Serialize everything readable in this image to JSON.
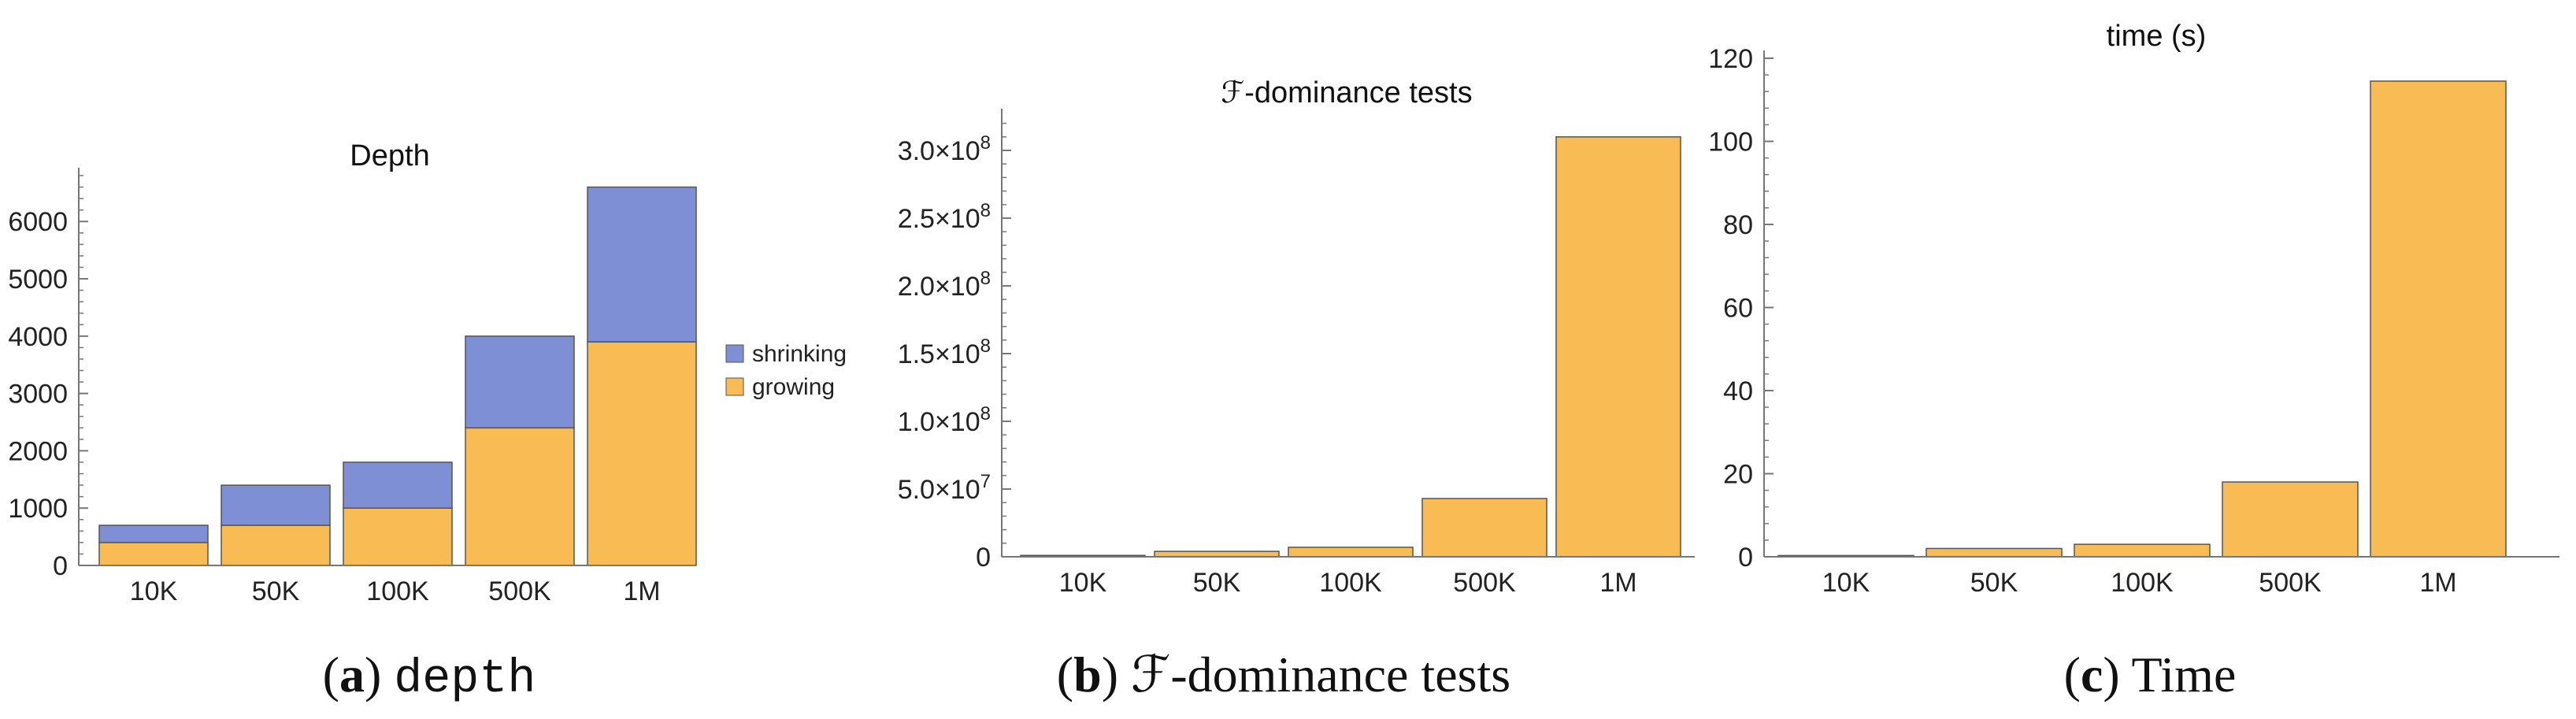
{
  "colors": {
    "growing": "#F9BC54",
    "shrinking": "#7F8FD6",
    "axis": "#777777",
    "bar_edge": "#555555"
  },
  "captions": [
    {
      "tag": "a",
      "text": "depth",
      "style": "code"
    },
    {
      "tag": "b",
      "text": "ℱ-dominance tests",
      "style": "serif"
    },
    {
      "tag": "c",
      "text": "Time",
      "style": "serif"
    }
  ],
  "chart_data": [
    {
      "type": "bar",
      "stacked": true,
      "title": "Depth",
      "categories": [
        "10K",
        "50K",
        "100K",
        "500K",
        "1M"
      ],
      "series": [
        {
          "name": "growing",
          "values": [
            400,
            700,
            1000,
            2400,
            3900
          ]
        },
        {
          "name": "shrinking",
          "values": [
            300,
            700,
            800,
            1600,
            2700
          ]
        }
      ],
      "ylim": [
        0,
        6800
      ],
      "yticks": [
        0,
        1000,
        2000,
        3000,
        4000,
        5000,
        6000
      ],
      "ytick_labels": [
        "0",
        "1000",
        "2000",
        "3000",
        "4000",
        "5000",
        "6000"
      ],
      "legend": {
        "placement": "right",
        "entries": [
          "shrinking",
          "growing"
        ]
      }
    },
    {
      "type": "bar",
      "title": "ℱ-dominance tests",
      "categories": [
        "10K",
        "50K",
        "100K",
        "500K",
        "1M"
      ],
      "values": [
        1000000,
        4000000,
        7000000,
        43000000,
        310000000
      ],
      "ylim": [
        0,
        325000000
      ],
      "yticks": [
        0,
        50000000,
        100000000,
        150000000,
        200000000,
        250000000,
        300000000
      ],
      "ytick_labels": [
        {
          "mantissa": "0",
          "exp": ""
        },
        {
          "mantissa": "5.0×10",
          "exp": "7"
        },
        {
          "mantissa": "1.0×10",
          "exp": "8"
        },
        {
          "mantissa": "1.5×10",
          "exp": "8"
        },
        {
          "mantissa": "2.0×10",
          "exp": "8"
        },
        {
          "mantissa": "2.5×10",
          "exp": "8"
        },
        {
          "mantissa": "3.0×10",
          "exp": "8"
        }
      ]
    },
    {
      "type": "bar",
      "title": "time (s)",
      "categories": [
        "10K",
        "50K",
        "100K",
        "500K",
        "1M"
      ],
      "values": [
        0.3,
        2,
        3,
        18,
        114.5
      ],
      "ylim": [
        0,
        120
      ],
      "yticks": [
        0,
        20,
        40,
        60,
        80,
        100,
        120
      ],
      "ytick_labels": [
        "0",
        "20",
        "40",
        "60",
        "80",
        "100",
        "120"
      ]
    }
  ]
}
